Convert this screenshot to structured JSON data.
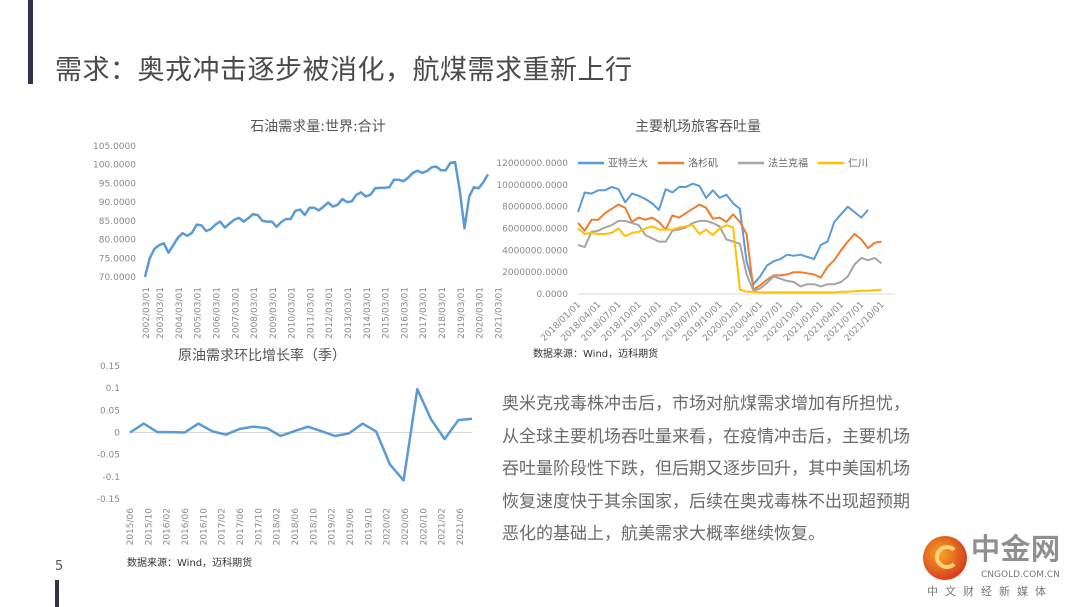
{
  "slide": {
    "title": "需求：奥戎冲击逐步被消化，航煤需求重新上行",
    "page_number": "5",
    "paragraph_lines": [
      "奥米克戎毒株冲击后，市场对航煤需求增加有所担忧，",
      "从全球主要机场吞吐量来看，在疫情冲击后，主要机场",
      "吞吐量阶段性下跌，但后期又逐步回升，其中美国机场",
      "恢复速度快于其余国家，后续在奥戎毒株不出现超预期",
      "恶化的基础上，航美需求大概率继续恢复。"
    ],
    "logo": {
      "name": "中金网",
      "domain": "CNGOLD.COM.CN",
      "tagline": "中文财经新媒体"
    }
  },
  "colors": {
    "blue": "#5b9bd5",
    "orange": "#ed7d31",
    "gray": "#a5a5a5",
    "yellow": "#ffc000",
    "bar": "#2f3447"
  },
  "chart_data": [
    {
      "type": "line",
      "title": "石油需求量:世界:合计",
      "ylim": [
        70,
        105
      ],
      "yticks": [
        "105.0000",
        "100.0000",
        "95.0000",
        "90.0000",
        "85.0000",
        "80.0000",
        "75.0000",
        "70.0000"
      ],
      "xticks": [
        "2002/03/01",
        "2003/03/01",
        "2004/03/01",
        "2005/03/01",
        "2006/03/01",
        "2007/03/01",
        "2008/03/01",
        "2009/03/01",
        "2010/03/01",
        "2011/03/01",
        "2012/03/01",
        "2013/03/01",
        "2014/03/01",
        "2015/03/01",
        "2016/03/01",
        "2017/03/01",
        "2018/03/01",
        "2019/03/01",
        "2020/03/01",
        "2021/03/01"
      ],
      "values": [
        70,
        75,
        77.5,
        78.5,
        79,
        76.5,
        78.5,
        80.5,
        81.7,
        81,
        81.8,
        84,
        83.8,
        82.3,
        82.8,
        84,
        84.8,
        83.2,
        84.3,
        85.3,
        85.8,
        84.8,
        85.7,
        86.8,
        86.5,
        85,
        84.8,
        84.8,
        83.4,
        84.7,
        85.5,
        85.5,
        87.7,
        88,
        86.6,
        88.5,
        88.5,
        87.8,
        88.8,
        89.9,
        88.8,
        89.3,
        90.8,
        90,
        90.2,
        92,
        92.6,
        91.5,
        92,
        93.7,
        93.8,
        93.8,
        94,
        96,
        96,
        95.6,
        96.5,
        97.8,
        98.4,
        97.8,
        98.3,
        99.3,
        99.5,
        98.5,
        98.5,
        100.5,
        100.7,
        93,
        83,
        91.5,
        94,
        93.7,
        95.3,
        97.4
      ]
    },
    {
      "type": "line",
      "title": "主要机场旅客吞吐量",
      "ylim": [
        0,
        12000000
      ],
      "yticks": [
        "12000000.0000",
        "10000000.0000",
        "8000000.0000",
        "6000000.0000",
        "4000000.0000",
        "2000000.0000",
        "0.0000"
      ],
      "xticks": [
        "2018/01/01",
        "2018/04/01",
        "2018/07/01",
        "2018/10/01",
        "2019/01/01",
        "2019/04/01",
        "2019/07/01",
        "2019/10/01",
        "2020/01/01",
        "2020/04/01",
        "2020/07/01",
        "2020/10/01",
        "2021/01/01",
        "2021/04/01",
        "2021/07/01",
        "2021/10/01"
      ],
      "legend": "top",
      "source": "数据来源：Wind，迈科期货",
      "series": [
        {
          "name": "亚特兰大",
          "color": "#5b9bd5",
          "values": [
            7500000,
            9300000,
            9200000,
            9500000,
            9500000,
            9800000,
            9600000,
            8400000,
            9200000,
            9000000,
            8700000,
            8300000,
            7700000,
            9600000,
            9300000,
            9800000,
            9800000,
            10100000,
            9900000,
            8800000,
            9500000,
            8800000,
            9100000,
            8300000,
            7800000,
            3000000,
            900000,
            1600000,
            2600000,
            3000000,
            3200000,
            3600000,
            3500000,
            3600000,
            3400000,
            3200000,
            4500000,
            4800000,
            6600000,
            7300000,
            8000000,
            7500000,
            7000000,
            7700000
          ]
        },
        {
          "name": "洛杉矶",
          "color": "#ed7d31",
          "values": [
            6500000,
            5800000,
            6800000,
            6800000,
            7400000,
            7800000,
            8200000,
            7900000,
            6600000,
            7000000,
            6800000,
            7000000,
            6600000,
            5900000,
            7200000,
            7000000,
            7400000,
            7800000,
            8200000,
            7900000,
            6900000,
            7000000,
            6600000,
            7300000,
            6600000,
            5500000,
            400000,
            800000,
            1300000,
            1700000,
            1700000,
            1800000,
            2000000,
            2000000,
            1900000,
            1800000,
            1500000,
            2500000,
            3100000,
            4000000,
            4800000,
            5500000,
            5000000,
            4200000,
            4700000,
            4800000
          ]
        },
        {
          "name": "法兰克福",
          "color": "#a5a5a5",
          "values": [
            4500000,
            4300000,
            5700000,
            5800000,
            6100000,
            6300000,
            6700000,
            6700000,
            6500000,
            6300000,
            5400000,
            5100000,
            4800000,
            4800000,
            5800000,
            5900000,
            6100000,
            6500000,
            6700000,
            6700000,
            6500000,
            6200000,
            5000000,
            4800000,
            4600000,
            1800000,
            300000,
            500000,
            1000000,
            1600000,
            1400000,
            1200000,
            1100000,
            700000,
            900000,
            900000,
            700000,
            900000,
            900000,
            1100000,
            1600000,
            2700000,
            3300000,
            3100000,
            3300000,
            2800000
          ]
        },
        {
          "name": "仁川",
          "color": "#ffc000",
          "values": [
            6000000,
            5500000,
            5600000,
            5500000,
            5500000,
            5600000,
            6000000,
            5300000,
            5600000,
            5700000,
            6000000,
            6200000,
            5900000,
            5900000,
            5900000,
            6100000,
            6200000,
            6300000,
            5500000,
            5900000,
            5400000,
            6000000,
            6300000,
            6100000,
            400000,
            200000,
            200000,
            150000,
            150000,
            150000,
            150000,
            150000,
            150000,
            150000,
            150000,
            150000,
            150000,
            150000,
            150000,
            200000,
            200000,
            250000,
            300000,
            300000,
            350000,
            400000
          ]
        }
      ]
    },
    {
      "type": "line",
      "title": "原油需求环比增长率（季）",
      "ylim": [
        -0.15,
        0.15
      ],
      "yticks": [
        "0.15",
        "0.1",
        "0.05",
        "0",
        "-0.05",
        "-0.1",
        "-0.15"
      ],
      "xticks": [
        "2015/06",
        "2015/10",
        "2016/02",
        "2016/06",
        "2016/10",
        "2017/02",
        "2017/06",
        "2017/10",
        "2018/02",
        "2018/06",
        "2018/10",
        "2019/02",
        "2019/06",
        "2019/10",
        "2020/02",
        "2020/06",
        "2020/10",
        "2021/02",
        "2021/06"
      ],
      "source": "数据来源：Wind，迈科期货",
      "values": [
        0,
        0.02,
        0.001,
        0.001,
        0,
        0.02,
        0.003,
        -0.005,
        0.008,
        0.013,
        0.01,
        -0.008,
        0.003,
        0.013,
        0.003,
        -0.008,
        -0.002,
        0.02,
        0.002,
        -0.072,
        -0.108,
        0.098,
        0.03,
        -0.015,
        0.028,
        0.031
      ]
    }
  ]
}
